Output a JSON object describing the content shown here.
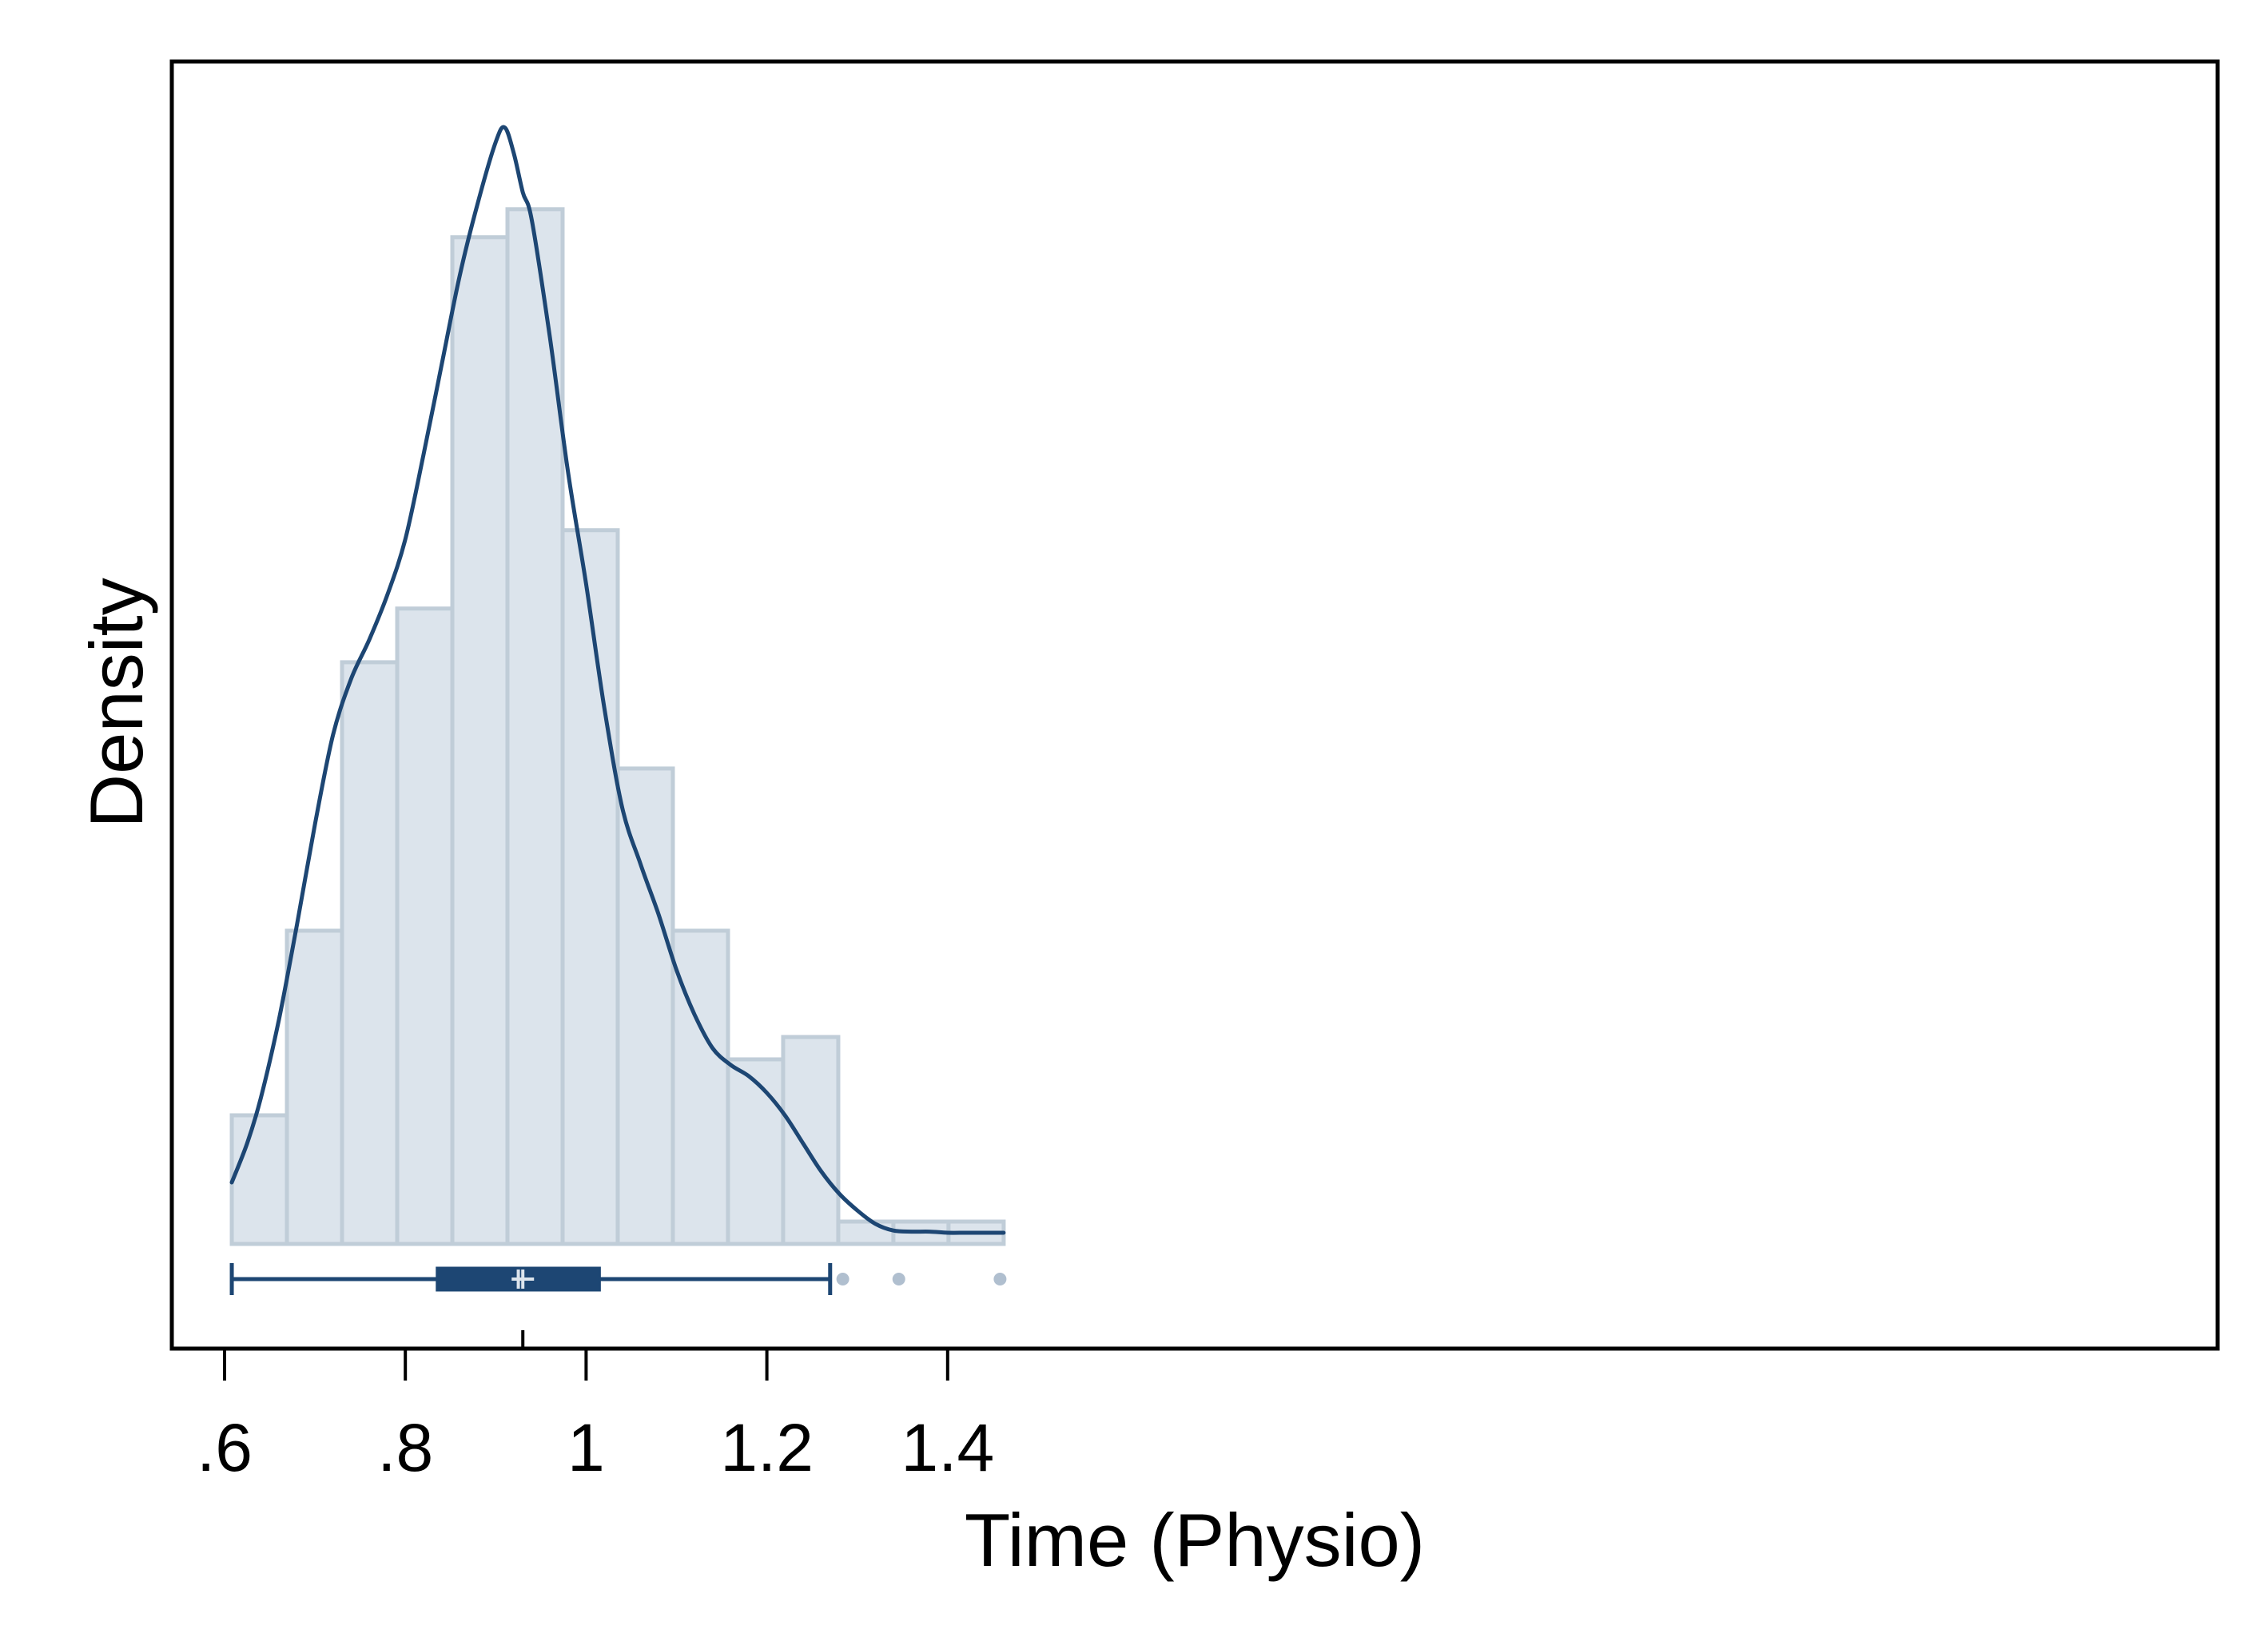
{
  "chart_data": {
    "type": "histogram",
    "xlabel": "Time (Physio)",
    "ylabel": "Density",
    "xlim": [
      0.59,
      1.475
    ],
    "x_ticks": [
      {
        "value": 0.6,
        "label": ".6"
      },
      {
        "value": 0.8,
        "label": ".8"
      },
      {
        "value": 1.0,
        "label": "1"
      },
      {
        "value": 1.2,
        "label": "1.2"
      },
      {
        "value": 1.4,
        "label": "1.4"
      }
    ],
    "y_ticks_shown": false,
    "grid": false,
    "histogram": {
      "bin_edges": [
        0.608,
        0.669,
        0.73,
        0.791,
        0.852,
        0.913,
        0.974,
        1.035,
        1.096,
        1.157,
        1.218,
        1.279,
        1.34,
        1.401,
        1.462
      ],
      "densities": [
        1.15,
        2.8,
        5.2,
        5.68,
        9.0,
        9.25,
        6.38,
        4.25,
        2.8,
        1.65,
        1.85,
        0.2,
        0.2,
        0.2
      ]
    },
    "kde": {
      "x": [
        0.608,
        0.625,
        0.64,
        0.66,
        0.68,
        0.7,
        0.72,
        0.74,
        0.76,
        0.78,
        0.8,
        0.82,
        0.84,
        0.86,
        0.88,
        0.9,
        0.91,
        0.92,
        0.93,
        0.94,
        0.96,
        0.98,
        1.0,
        1.02,
        1.04,
        1.06,
        1.08,
        1.1,
        1.12,
        1.14,
        1.16,
        1.18,
        1.2,
        1.22,
        1.24,
        1.26,
        1.28,
        1.3,
        1.32,
        1.34,
        1.36,
        1.38,
        1.4,
        1.42,
        1.44,
        1.462
      ],
      "density": [
        0.55,
        0.9,
        1.3,
        2.0,
        2.85,
        3.75,
        4.55,
        5.05,
        5.4,
        5.8,
        6.3,
        7.05,
        7.85,
        8.65,
        9.3,
        9.85,
        9.98,
        9.75,
        9.4,
        9.15,
        8.1,
        6.9,
        5.9,
        4.8,
        3.9,
        3.4,
        2.95,
        2.45,
        2.05,
        1.75,
        1.6,
        1.5,
        1.35,
        1.15,
        0.9,
        0.65,
        0.45,
        0.3,
        0.18,
        0.12,
        0.11,
        0.11,
        0.1,
        0.1,
        0.1,
        0.1
      ]
    },
    "boxplot": {
      "whisker_low": 0.608,
      "q1": 0.835,
      "median": 0.925,
      "mean": 0.93,
      "q3": 1.015,
      "whisker_high": 1.27,
      "outliers": [
        1.284,
        1.346,
        1.458
      ]
    },
    "ylim": [
      0,
      10.12
    ],
    "colors": {
      "bar_fill": "#dce4ec",
      "bar_edge": "#c0cdd8",
      "kde_line": "#1d4673",
      "box": "#1d4673",
      "median_mark": "#dce4ec",
      "outlier": "#b0bfcf",
      "frame": "#000000"
    }
  }
}
